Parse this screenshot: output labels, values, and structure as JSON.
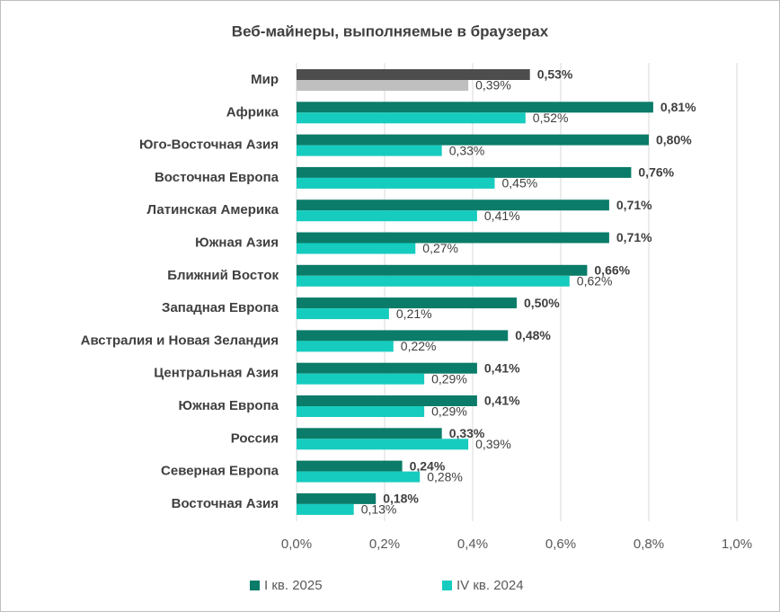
{
  "chart_data": {
    "type": "bar",
    "orientation": "horizontal",
    "title": "Веб-майнеры, выполняемые в браузерах",
    "categories": [
      "Мир",
      "Африка",
      "Юго-Восточная Азия",
      "Восточная Европа",
      "Латинская Америка",
      "Южная Азия",
      "Ближний Восток",
      "Западная Европа",
      "Австралия и Новая Зеландия",
      "Центральная Азия",
      "Южная Европа",
      "Россия",
      "Северная Европа",
      "Восточная Азия"
    ],
    "series": [
      {
        "name": "I кв. 2025",
        "color": "#0a7c69",
        "colors": [
          "#4d4d4d",
          "#0a7c69",
          "#0a7c69",
          "#0a7c69",
          "#0a7c69",
          "#0a7c69",
          "#0a7c69",
          "#0a7c69",
          "#0a7c69",
          "#0a7c69",
          "#0a7c69",
          "#0a7c69",
          "#0a7c69",
          "#0a7c69"
        ],
        "values": [
          0.53,
          0.81,
          0.8,
          0.76,
          0.71,
          0.71,
          0.66,
          0.5,
          0.48,
          0.41,
          0.41,
          0.33,
          0.24,
          0.18
        ],
        "value_labels": [
          "0,53%",
          "0,81%",
          "0,80%",
          "0,76%",
          "0,71%",
          "0,71%",
          "0,66%",
          "0,50%",
          "0,48%",
          "0,41%",
          "0,41%",
          "0,33%",
          "0,24%",
          "0,18%"
        ]
      },
      {
        "name": "IV кв. 2024",
        "color": "#16ccbf",
        "colors": [
          "#bfbfbf",
          "#16ccbf",
          "#16ccbf",
          "#16ccbf",
          "#16ccbf",
          "#16ccbf",
          "#16ccbf",
          "#16ccbf",
          "#16ccbf",
          "#16ccbf",
          "#16ccbf",
          "#16ccbf",
          "#16ccbf",
          "#16ccbf"
        ],
        "values": [
          0.39,
          0.52,
          0.33,
          0.45,
          0.41,
          0.27,
          0.62,
          0.21,
          0.22,
          0.29,
          0.29,
          0.39,
          0.28,
          0.13
        ],
        "value_labels": [
          "0,39%",
          "0,52%",
          "0,33%",
          "0,45%",
          "0,41%",
          "0,27%",
          "0,62%",
          "0,21%",
          "0,22%",
          "0,29%",
          "0,29%",
          "0,39%",
          "0,28%",
          "0,13%"
        ]
      }
    ],
    "xlim": [
      0,
      1.0
    ],
    "xticks": [
      {
        "value": 0,
        "label": "0,0%"
      },
      {
        "value": 0.2,
        "label": "0,2%"
      },
      {
        "value": 0.4,
        "label": "0,4%"
      },
      {
        "value": 0.6,
        "label": "0,6%"
      },
      {
        "value": 0.8,
        "label": "0,8%"
      },
      {
        "value": 1.0,
        "label": "1,0%"
      }
    ],
    "grid": true,
    "legend": "bottom"
  }
}
